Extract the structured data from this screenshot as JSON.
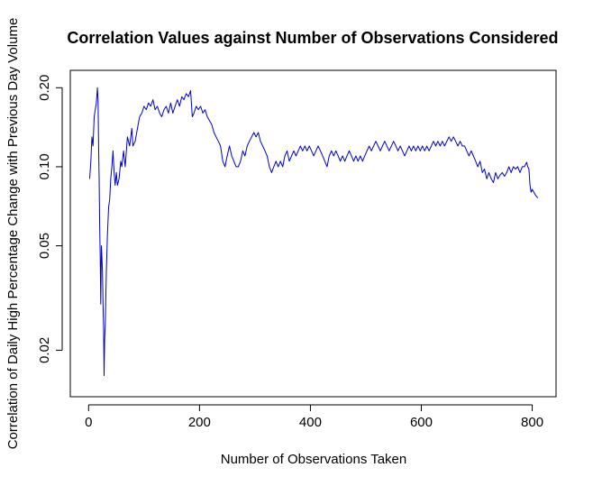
{
  "chart_data": {
    "type": "line",
    "title": "Correlation Values against Number of Observations Considered",
    "xlabel": "Number of Observations Taken",
    "ylabel": "Correlation of Daily High Percentage Change with Previous Day Volume",
    "x_scale": "linear",
    "y_scale": "log",
    "xlim": [
      -33,
      843
    ],
    "ylim": [
      0.0133,
      0.233
    ],
    "x_ticks": [
      0,
      200,
      400,
      600,
      800
    ],
    "x_tick_labels": [
      "0",
      "200",
      "400",
      "600",
      "800"
    ],
    "y_ticks": [
      0.02,
      0.05,
      0.1,
      0.2
    ],
    "y_tick_labels": [
      "0.02",
      "0.05",
      "0.10",
      "0.20"
    ],
    "grid": false,
    "line_color": "#0000cc",
    "series": [
      {
        "points": [
          [
            2,
            0.09
          ],
          [
            4,
            0.105
          ],
          [
            6,
            0.13
          ],
          [
            8,
            0.12
          ],
          [
            10,
            0.155
          ],
          [
            12,
            0.165
          ],
          [
            14,
            0.175
          ],
          [
            16,
            0.2
          ],
          [
            17,
            0.18
          ],
          [
            18,
            0.12
          ],
          [
            19,
            0.09
          ],
          [
            20,
            0.06
          ],
          [
            21,
            0.045
          ],
          [
            22,
            0.03
          ],
          [
            23,
            0.05
          ],
          [
            24,
            0.045
          ],
          [
            25,
            0.04
          ],
          [
            26,
            0.03
          ],
          [
            27,
            0.025
          ],
          [
            28,
            0.016
          ],
          [
            29,
            0.022
          ],
          [
            30,
            0.025
          ],
          [
            32,
            0.04
          ],
          [
            34,
            0.055
          ],
          [
            36,
            0.07
          ],
          [
            38,
            0.075
          ],
          [
            40,
            0.09
          ],
          [
            42,
            0.1
          ],
          [
            44,
            0.115
          ],
          [
            46,
            0.095
          ],
          [
            48,
            0.085
          ],
          [
            50,
            0.095
          ],
          [
            52,
            0.085
          ],
          [
            55,
            0.09
          ],
          [
            58,
            0.105
          ],
          [
            60,
            0.1
          ],
          [
            63,
            0.115
          ],
          [
            66,
            0.1
          ],
          [
            70,
            0.13
          ],
          [
            74,
            0.12
          ],
          [
            78,
            0.14
          ],
          [
            80,
            0.12
          ],
          [
            84,
            0.125
          ],
          [
            88,
            0.14
          ],
          [
            92,
            0.155
          ],
          [
            96,
            0.16
          ],
          [
            100,
            0.17
          ],
          [
            104,
            0.165
          ],
          [
            108,
            0.175
          ],
          [
            112,
            0.17
          ],
          [
            116,
            0.18
          ],
          [
            120,
            0.165
          ],
          [
            124,
            0.17
          ],
          [
            128,
            0.16
          ],
          [
            132,
            0.155
          ],
          [
            136,
            0.165
          ],
          [
            140,
            0.17
          ],
          [
            144,
            0.16
          ],
          [
            148,
            0.175
          ],
          [
            152,
            0.16
          ],
          [
            156,
            0.17
          ],
          [
            160,
            0.18
          ],
          [
            164,
            0.17
          ],
          [
            168,
            0.185
          ],
          [
            172,
            0.18
          ],
          [
            176,
            0.19
          ],
          [
            180,
            0.185
          ],
          [
            184,
            0.195
          ],
          [
            187,
            0.155
          ],
          [
            190,
            0.16
          ],
          [
            194,
            0.17
          ],
          [
            198,
            0.165
          ],
          [
            202,
            0.17
          ],
          [
            206,
            0.16
          ],
          [
            210,
            0.165
          ],
          [
            214,
            0.155
          ],
          [
            218,
            0.15
          ],
          [
            222,
            0.145
          ],
          [
            226,
            0.135
          ],
          [
            230,
            0.13
          ],
          [
            234,
            0.125
          ],
          [
            238,
            0.12
          ],
          [
            242,
            0.105
          ],
          [
            246,
            0.1
          ],
          [
            250,
            0.11
          ],
          [
            254,
            0.12
          ],
          [
            258,
            0.11
          ],
          [
            262,
            0.105
          ],
          [
            266,
            0.1
          ],
          [
            270,
            0.1
          ],
          [
            274,
            0.105
          ],
          [
            278,
            0.115
          ],
          [
            282,
            0.11
          ],
          [
            286,
            0.12
          ],
          [
            290,
            0.125
          ],
          [
            294,
            0.13
          ],
          [
            298,
            0.135
          ],
          [
            302,
            0.13
          ],
          [
            306,
            0.135
          ],
          [
            310,
            0.125
          ],
          [
            314,
            0.12
          ],
          [
            318,
            0.115
          ],
          [
            322,
            0.11
          ],
          [
            326,
            0.1
          ],
          [
            330,
            0.095
          ],
          [
            334,
            0.1
          ],
          [
            338,
            0.105
          ],
          [
            342,
            0.1
          ],
          [
            346,
            0.105
          ],
          [
            350,
            0.1
          ],
          [
            354,
            0.11
          ],
          [
            358,
            0.115
          ],
          [
            362,
            0.105
          ],
          [
            366,
            0.11
          ],
          [
            370,
            0.115
          ],
          [
            374,
            0.11
          ],
          [
            378,
            0.115
          ],
          [
            382,
            0.12
          ],
          [
            386,
            0.115
          ],
          [
            390,
            0.12
          ],
          [
            394,
            0.115
          ],
          [
            398,
            0.12
          ],
          [
            402,
            0.115
          ],
          [
            406,
            0.11
          ],
          [
            410,
            0.115
          ],
          [
            414,
            0.12
          ],
          [
            418,
            0.115
          ],
          [
            422,
            0.11
          ],
          [
            426,
            0.105
          ],
          [
            430,
            0.1
          ],
          [
            434,
            0.11
          ],
          [
            438,
            0.115
          ],
          [
            442,
            0.11
          ],
          [
            446,
            0.115
          ],
          [
            450,
            0.11
          ],
          [
            454,
            0.105
          ],
          [
            458,
            0.11
          ],
          [
            462,
            0.105
          ],
          [
            466,
            0.11
          ],
          [
            470,
            0.115
          ],
          [
            474,
            0.11
          ],
          [
            478,
            0.105
          ],
          [
            482,
            0.11
          ],
          [
            486,
            0.105
          ],
          [
            490,
            0.11
          ],
          [
            494,
            0.105
          ],
          [
            498,
            0.11
          ],
          [
            502,
            0.115
          ],
          [
            506,
            0.12
          ],
          [
            510,
            0.115
          ],
          [
            514,
            0.12
          ],
          [
            518,
            0.125
          ],
          [
            522,
            0.12
          ],
          [
            526,
            0.115
          ],
          [
            530,
            0.12
          ],
          [
            534,
            0.125
          ],
          [
            538,
            0.12
          ],
          [
            542,
            0.115
          ],
          [
            546,
            0.12
          ],
          [
            550,
            0.125
          ],
          [
            554,
            0.12
          ],
          [
            558,
            0.115
          ],
          [
            562,
            0.12
          ],
          [
            566,
            0.115
          ],
          [
            570,
            0.11
          ],
          [
            574,
            0.115
          ],
          [
            578,
            0.12
          ],
          [
            582,
            0.115
          ],
          [
            586,
            0.12
          ],
          [
            590,
            0.115
          ],
          [
            594,
            0.12
          ],
          [
            598,
            0.115
          ],
          [
            602,
            0.12
          ],
          [
            606,
            0.115
          ],
          [
            610,
            0.12
          ],
          [
            614,
            0.115
          ],
          [
            618,
            0.12
          ],
          [
            622,
            0.125
          ],
          [
            626,
            0.12
          ],
          [
            630,
            0.125
          ],
          [
            634,
            0.12
          ],
          [
            638,
            0.125
          ],
          [
            642,
            0.12
          ],
          [
            646,
            0.125
          ],
          [
            650,
            0.13
          ],
          [
            654,
            0.125
          ],
          [
            658,
            0.13
          ],
          [
            662,
            0.125
          ],
          [
            666,
            0.12
          ],
          [
            670,
            0.125
          ],
          [
            674,
            0.12
          ],
          [
            678,
            0.12
          ],
          [
            682,
            0.115
          ],
          [
            686,
            0.11
          ],
          [
            690,
            0.115
          ],
          [
            694,
            0.11
          ],
          [
            698,
            0.105
          ],
          [
            702,
            0.1
          ],
          [
            706,
            0.105
          ],
          [
            710,
            0.095
          ],
          [
            714,
            0.098
          ],
          [
            718,
            0.09
          ],
          [
            722,
            0.095
          ],
          [
            726,
            0.09
          ],
          [
            730,
            0.087
          ],
          [
            734,
            0.095
          ],
          [
            738,
            0.09
          ],
          [
            742,
            0.093
          ],
          [
            746,
            0.095
          ],
          [
            750,
            0.092
          ],
          [
            754,
            0.095
          ],
          [
            758,
            0.1
          ],
          [
            762,
            0.095
          ],
          [
            766,
            0.1
          ],
          [
            770,
            0.098
          ],
          [
            774,
            0.1
          ],
          [
            778,
            0.095
          ],
          [
            782,
            0.1
          ],
          [
            786,
            0.1
          ],
          [
            790,
            0.104
          ],
          [
            792,
            0.1
          ],
          [
            794,
            0.098
          ],
          [
            796,
            0.085
          ],
          [
            798,
            0.08
          ],
          [
            800,
            0.082
          ],
          [
            803,
            0.08
          ],
          [
            806,
            0.078
          ],
          [
            810,
            0.076
          ]
        ]
      }
    ]
  }
}
